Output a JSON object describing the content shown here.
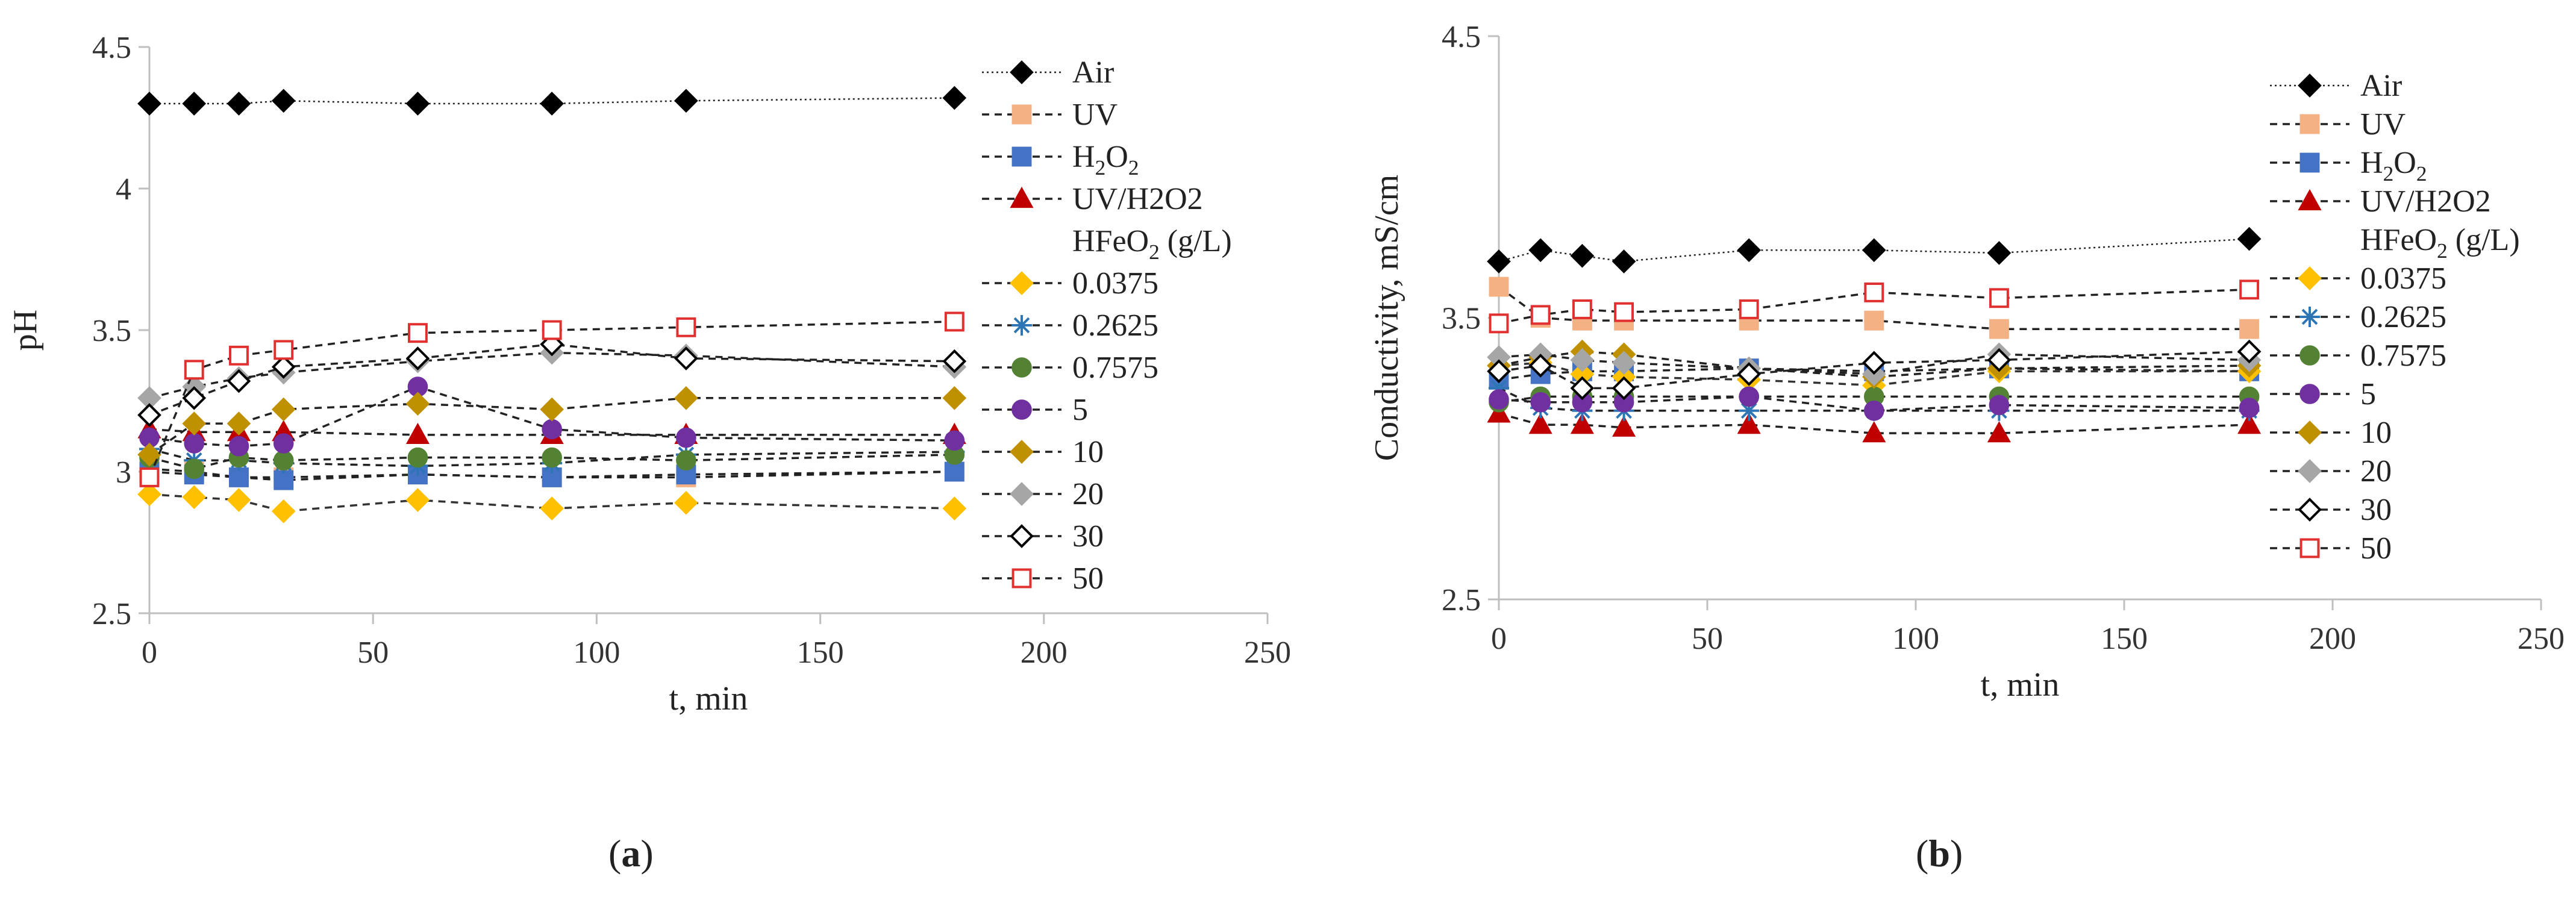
{
  "panels": {
    "a": {
      "label_open": "(",
      "label_letter": "a",
      "label_close": ")"
    },
    "b": {
      "label_open": "(",
      "label_letter": "b",
      "label_close": ")"
    }
  },
  "chart_data": [
    {
      "type": "line",
      "panel": "a",
      "xlabel": "t, min",
      "ylabel": "pH",
      "xlim": [
        0,
        250
      ],
      "ylim": [
        2.5,
        4.5
      ],
      "xticks": [
        "0",
        "50",
        "100",
        "150",
        "200",
        "250"
      ],
      "yticks": [
        "2.5",
        "3",
        "3.5",
        "4",
        "4.5"
      ],
      "x": [
        0,
        10,
        20,
        30,
        60,
        90,
        120,
        180
      ],
      "legend_subheading": "HFeO2 (g/L)",
      "series": [
        {
          "name": "Air",
          "marker": "diamond",
          "color": "#000000",
          "fill": true,
          "dash": "dot",
          "values": [
            4.3,
            4.3,
            4.3,
            4.31,
            4.3,
            4.3,
            4.31,
            4.32
          ]
        },
        {
          "name": "UV",
          "marker": "square",
          "color": "#F4B183",
          "fill": true,
          "dash": "dash",
          "values": [
            3.01,
            3.0,
            2.98,
            2.98,
            2.99,
            2.98,
            2.98,
            3.0
          ]
        },
        {
          "name": "H2O2",
          "marker": "square",
          "color": "#4472C4",
          "fill": true,
          "dash": "dash",
          "values": [
            3.0,
            2.99,
            2.98,
            2.97,
            2.99,
            2.98,
            2.99,
            3.0
          ]
        },
        {
          "name": "UV/H2O2",
          "marker": "triangle",
          "color": "#C00000",
          "fill": true,
          "dash": "dash",
          "values": [
            3.15,
            3.14,
            3.14,
            3.14,
            3.13,
            3.13,
            3.13,
            3.13
          ]
        },
        {
          "name": "0.0375",
          "marker": "diamond",
          "color": "#FFC000",
          "fill": true,
          "dash": "dash",
          "values": [
            2.92,
            2.91,
            2.9,
            2.86,
            2.9,
            2.87,
            2.89,
            2.87
          ]
        },
        {
          "name": "0.2625",
          "marker": "star",
          "color": "#2E75B6",
          "fill": false,
          "dash": "dash",
          "values": [
            3.08,
            3.04,
            3.04,
            3.03,
            3.02,
            3.03,
            3.06,
            3.07
          ]
        },
        {
          "name": "0.7575",
          "marker": "circle",
          "color": "#548235",
          "fill": true,
          "dash": "dash",
          "values": [
            3.05,
            3.01,
            3.05,
            3.04,
            3.05,
            3.05,
            3.04,
            3.06
          ]
        },
        {
          "name": "5",
          "marker": "circle",
          "color": "#7030A0",
          "fill": true,
          "dash": "dash",
          "values": [
            3.12,
            3.1,
            3.09,
            3.1,
            3.3,
            3.15,
            3.12,
            3.11
          ]
        },
        {
          "name": "10",
          "marker": "diamond",
          "color": "#BF9000",
          "fill": true,
          "dash": "dash",
          "values": [
            3.06,
            3.17,
            3.17,
            3.22,
            3.24,
            3.22,
            3.26,
            3.26
          ]
        },
        {
          "name": "20",
          "marker": "diamond",
          "color": "#A6A6A6",
          "fill": true,
          "dash": "dash",
          "values": [
            3.26,
            3.3,
            3.33,
            3.35,
            3.39,
            3.42,
            3.41,
            3.37
          ]
        },
        {
          "name": "30",
          "marker": "diamond",
          "color": "#000000",
          "fill": false,
          "dash": "dash",
          "values": [
            3.2,
            3.26,
            3.32,
            3.37,
            3.4,
            3.45,
            3.4,
            3.39
          ]
        },
        {
          "name": "50",
          "marker": "square",
          "color": "#E03030",
          "fill": false,
          "dash": "dash",
          "values": [
            2.98,
            3.36,
            3.41,
            3.43,
            3.49,
            3.5,
            3.51,
            3.53
          ]
        }
      ]
    },
    {
      "type": "line",
      "panel": "b",
      "xlabel": "t, min",
      "ylabel": "Conductivity, mS/cm",
      "xlim": [
        0,
        250
      ],
      "ylim": [
        2.5,
        4.5
      ],
      "xticks": [
        "0",
        "50",
        "100",
        "150",
        "200",
        "250"
      ],
      "yticks": [
        "2.5",
        "3.5",
        "4.5"
      ],
      "x": [
        0,
        10,
        20,
        30,
        60,
        90,
        120,
        180
      ],
      "legend_subheading": "HFeO2 (g/L)",
      "series": [
        {
          "name": "Air",
          "marker": "diamond",
          "color": "#000000",
          "fill": true,
          "dash": "dot",
          "values": [
            3.7,
            3.74,
            3.72,
            3.7,
            3.74,
            3.74,
            3.73,
            3.78
          ]
        },
        {
          "name": "UV",
          "marker": "square",
          "color": "#F4B183",
          "fill": true,
          "dash": "dash",
          "values": [
            3.61,
            3.5,
            3.49,
            3.49,
            3.49,
            3.49,
            3.46,
            3.46
          ]
        },
        {
          "name": "H2O2",
          "marker": "square",
          "color": "#4472C4",
          "fill": true,
          "dash": "dash",
          "values": [
            3.28,
            3.3,
            3.31,
            3.31,
            3.32,
            3.31,
            3.32,
            3.31
          ]
        },
        {
          "name": "UV/H2O2",
          "marker": "triangle",
          "color": "#C00000",
          "fill": true,
          "dash": "dash",
          "values": [
            3.16,
            3.12,
            3.12,
            3.11,
            3.12,
            3.09,
            3.09,
            3.12
          ]
        },
        {
          "name": "0.0375",
          "marker": "diamond",
          "color": "#FFC000",
          "fill": true,
          "dash": "dash",
          "values": [
            3.33,
            3.34,
            3.3,
            3.29,
            3.28,
            3.26,
            3.31,
            3.31
          ]
        },
        {
          "name": "0.2625",
          "marker": "star",
          "color": "#2E75B6",
          "fill": false,
          "dash": "dash",
          "values": [
            3.25,
            3.18,
            3.17,
            3.17,
            3.17,
            3.17,
            3.17,
            3.17
          ]
        },
        {
          "name": "0.7575",
          "marker": "circle",
          "color": "#548235",
          "fill": true,
          "dash": "dash",
          "values": [
            3.2,
            3.22,
            3.22,
            3.22,
            3.22,
            3.22,
            3.22,
            3.22
          ]
        },
        {
          "name": "5",
          "marker": "circle",
          "color": "#7030A0",
          "fill": true,
          "dash": "dash",
          "values": [
            3.21,
            3.2,
            3.2,
            3.2,
            3.22,
            3.17,
            3.19,
            3.18
          ]
        },
        {
          "name": "10",
          "marker": "diamond",
          "color": "#BF9000",
          "fill": true,
          "dash": "dash",
          "values": [
            3.33,
            3.36,
            3.38,
            3.37,
            3.32,
            3.29,
            3.32,
            3.33
          ]
        },
        {
          "name": "20",
          "marker": "diamond",
          "color": "#A6A6A6",
          "fill": true,
          "dash": "dash",
          "values": [
            3.36,
            3.37,
            3.35,
            3.34,
            3.32,
            3.3,
            3.37,
            3.35
          ]
        },
        {
          "name": "30",
          "marker": "diamond",
          "color": "#000000",
          "fill": false,
          "dash": "dash",
          "values": [
            3.31,
            3.33,
            3.25,
            3.25,
            3.3,
            3.34,
            3.35,
            3.38
          ]
        },
        {
          "name": "50",
          "marker": "square",
          "color": "#E03030",
          "fill": false,
          "dash": "dash",
          "values": [
            3.48,
            3.51,
            3.53,
            3.52,
            3.53,
            3.59,
            3.57,
            3.6
          ]
        }
      ]
    }
  ]
}
